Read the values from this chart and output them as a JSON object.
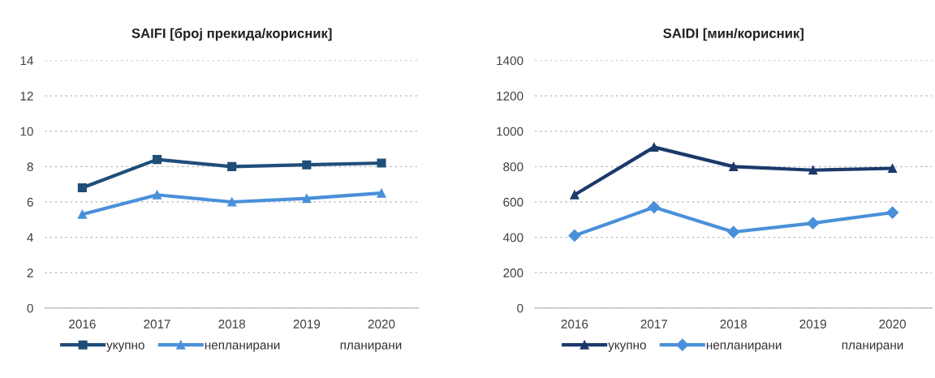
{
  "chart_data": [
    {
      "type": "line",
      "title": "SAIFI [број прекида/корисник]",
      "categories": [
        "2016",
        "2017",
        "2018",
        "2019",
        "2020"
      ],
      "series": [
        {
          "name": "укупно",
          "color": "#1f4e79",
          "marker": "square",
          "values": [
            6.8,
            8.4,
            8.0,
            8.1,
            8.2
          ]
        },
        {
          "name": "непланирани",
          "color": "#4a90d9",
          "marker": "triangle",
          "values": [
            5.3,
            6.4,
            6.0,
            6.2,
            6.5
          ]
        },
        {
          "name": "планирани",
          "values": [
            null,
            null,
            null,
            null,
            null
          ]
        }
      ],
      "ylim": [
        0,
        14
      ],
      "yticks": [
        0,
        2,
        4,
        6,
        8,
        10,
        12,
        14
      ],
      "grid": "y",
      "legend": "bottom"
    },
    {
      "type": "line",
      "title": "SAIDI [мин/корисник]",
      "categories": [
        "2016",
        "2017",
        "2018",
        "2019",
        "2020"
      ],
      "series": [
        {
          "name": "укупно",
          "color": "#1b3a6b",
          "marker": "triangle",
          "values": [
            640,
            910,
            800,
            780,
            790
          ]
        },
        {
          "name": "непланирани",
          "color": "#4a90d9",
          "marker": "diamond",
          "values": [
            410,
            570,
            430,
            480,
            540
          ]
        },
        {
          "name": "планирани",
          "values": [
            null,
            null,
            null,
            null,
            null
          ]
        }
      ],
      "ylim": [
        0,
        1400
      ],
      "yticks": [
        0,
        200,
        400,
        600,
        800,
        1000,
        1200,
        1400
      ],
      "grid": "y",
      "legend": "bottom"
    }
  ]
}
